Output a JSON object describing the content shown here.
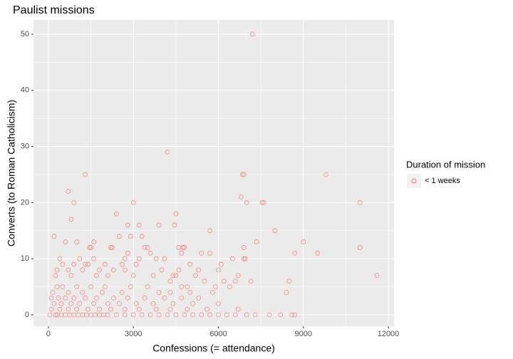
{
  "chart_data": {
    "type": "scatter",
    "title": "Paulist missions",
    "x_label": "Confessions (= attendance)",
    "y_label": "Converts (to Roman Catholicism)",
    "legend_title": "Duration of mission",
    "legend_position": "right",
    "xlim": [
      -528,
      12201
    ],
    "ylim": [
      -2.03,
      52.54
    ],
    "xticks": [
      0,
      3000,
      6000,
      9000,
      12000
    ],
    "yticks": [
      0,
      10,
      20,
      30,
      40,
      50
    ],
    "grid": true,
    "minor_grid": true,
    "x": [
      7200,
      4200,
      1300,
      6900,
      6850,
      9800,
      700,
      6800,
      900,
      3000,
      7000,
      7550,
      7600,
      11000,
      800,
      3900,
      3200,
      2800,
      2400,
      4500,
      5700,
      8000,
      200,
      2500,
      2900,
      3300,
      4450,
      1450,
      1500,
      2200,
      2250,
      3400,
      4600,
      4750,
      4800,
      6900,
      11000,
      3500,
      5400,
      5700,
      8700,
      9500,
      2800,
      3600,
      4700,
      7350,
      9000,
      1000,
      1600,
      600,
      6500,
      6950,
      6900,
      4100,
      3800,
      3200,
      2700,
      1100,
      1600,
      400,
      5000,
      6100,
      3100,
      2600,
      1300,
      1400,
      500,
      900,
      2000,
      4000,
      2700,
      2300,
      1800,
      700,
      300,
      1200,
      4600,
      5300,
      6000,
      6700,
      3700,
      4400,
      4500,
      2100,
      1700,
      800,
      250,
      5200,
      3000,
      11600,
      4300,
      5500,
      6200,
      6600,
      7150,
      8500,
      4900,
      5900,
      3500,
      2900,
      2000,
      1500,
      1000,
      500,
      300,
      4700,
      6400,
      8400,
      5000,
      5800,
      4300,
      3900,
      2600,
      1900,
      1200,
      700,
      150,
      5300,
      4700,
      4100,
      3400,
      2800,
      2300,
      1700,
      1300,
      900,
      600,
      350,
      100,
      5100,
      4400,
      3700,
      3100,
      2500,
      2100,
      1600,
      1100,
      800,
      450,
      200,
      6000,
      5600,
      4900,
      4300,
      3800,
      3200,
      2700,
      2200,
      1800,
      1400,
      1000,
      700,
      400,
      100,
      6700,
      50,
      250,
      300,
      450,
      600,
      750,
      900,
      1050,
      1200,
      1350,
      1500,
      1650,
      1800,
      1950,
      2100,
      2400,
      2700,
      3000,
      3300,
      3600,
      3900,
      4200,
      4500,
      4800,
      5100,
      5400,
      5700,
      6000,
      6300,
      6600,
      7000,
      7300,
      7800,
      8200,
      8600,
      8700
    ],
    "series": [
      {
        "name": "< 1 weeks",
        "color": "#F8766D",
        "values": [
          50,
          29,
          25,
          25,
          25,
          25,
          22,
          21,
          20,
          20,
          20,
          20,
          20,
          20,
          17,
          16,
          16,
          16,
          18,
          18,
          15,
          15,
          14,
          14,
          14,
          14,
          16,
          12,
          12,
          12,
          12,
          12,
          12,
          12,
          12,
          12,
          12,
          12,
          11,
          11,
          11,
          11,
          11,
          11,
          11,
          13,
          13,
          13,
          13,
          13,
          10,
          10,
          10,
          10,
          10,
          10,
          10,
          10,
          10,
          10,
          9,
          9,
          9,
          9,
          9,
          9,
          9,
          9,
          9,
          8,
          8,
          8,
          8,
          8,
          8,
          8,
          8,
          8,
          8,
          7,
          7,
          7,
          7,
          7,
          7,
          7,
          7,
          7,
          7,
          7,
          6,
          6,
          6,
          6,
          6,
          6,
          5,
          5,
          5,
          5,
          5,
          5,
          5,
          5,
          5,
          5,
          5,
          4,
          4,
          4,
          4,
          4,
          4,
          4,
          4,
          4,
          4,
          3,
          3,
          3,
          3,
          3,
          3,
          3,
          3,
          3,
          3,
          3,
          3,
          2,
          2,
          2,
          2,
          2,
          2,
          2,
          2,
          2,
          2,
          2,
          2,
          1,
          1,
          1,
          1,
          1,
          1,
          1,
          1,
          1,
          1,
          1,
          1,
          1,
          1,
          0,
          0,
          0,
          0,
          0,
          0,
          0,
          0,
          0,
          0,
          0,
          0,
          0,
          0,
          0,
          0,
          0,
          0,
          0,
          0,
          0,
          0,
          0,
          0,
          0,
          0,
          0,
          0,
          0,
          0,
          0,
          0,
          0,
          0,
          0,
          0
        ]
      }
    ]
  }
}
